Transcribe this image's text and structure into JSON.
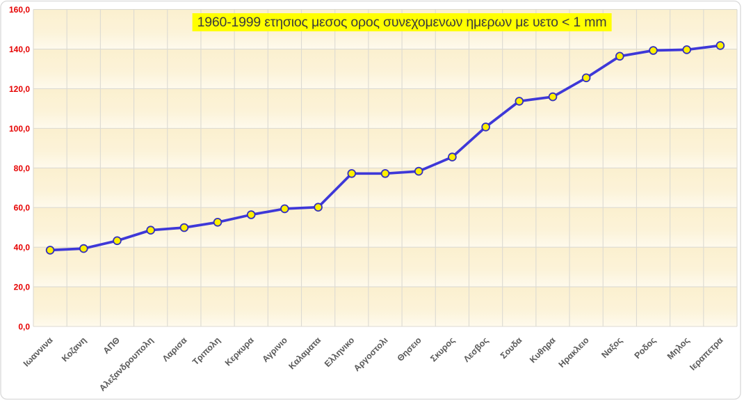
{
  "chart_data": {
    "type": "line",
    "title": "1960-1999 ετησιος μεσος ορος συνεχομενων ημερων με υετο < 1 mm",
    "categories": [
      "Ιωαννινα",
      "Κοζανη",
      "ΑΠΘ",
      "Αλεξανδρουπολη",
      "Λαρισα",
      "Τριπολη",
      "Κερκυρα",
      "Αγρινιο",
      "Καλαματα",
      "Ελληνικο",
      "Αργοστολι",
      "Θησειο",
      "Σκυρος",
      "Λεσβος",
      "Σουδα",
      "Κυθηρα",
      "Ηρακλειο",
      "Ναξος",
      "Ροδος",
      "Μηλος",
      "Ιεραπετρα"
    ],
    "values": [
      38.5,
      39.3,
      43.3,
      48.6,
      49.9,
      52.6,
      56.4,
      59.4,
      60.2,
      77.2,
      77.2,
      78.3,
      85.5,
      100.7,
      113.7,
      115.9,
      125.5,
      136.4,
      139.3,
      139.7,
      141.8
    ],
    "xlabel": "",
    "ylabel": "",
    "ylim": [
      0,
      160
    ],
    "ytick_step": 20,
    "ytick_labels": [
      "0,0",
      "20,0",
      "40,0",
      "60,0",
      "80,0",
      "100,0",
      "120,0",
      "140,0",
      "160,0"
    ],
    "grid": "both",
    "legend": "none",
    "decimal_separator": ",",
    "colors": {
      "line": "#3E38D8",
      "marker_fill": "#FFF000",
      "marker_stroke": "#3330BE",
      "y_tick_label": "#E60000",
      "x_tick_label": "#595959",
      "title_text": "#3C3C3C",
      "title_highlight": "#FFFF00",
      "plot_band_top": "#FBF0CF",
      "plot_band_mid": "#FCF3D9",
      "plot_band_bottom": "#FEFAED",
      "gridline": "#DCDAD2",
      "chart_border": "#D9D9D9",
      "chart_background": "#FFFFFF"
    }
  }
}
